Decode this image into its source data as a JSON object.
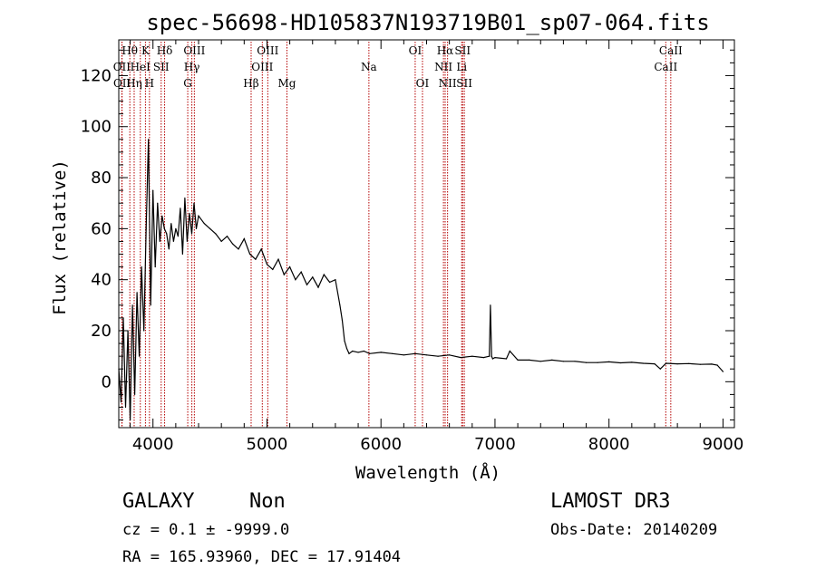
{
  "chart_data": {
    "type": "line",
    "title": "spec-56698-HD105837N193719B01_sp07-064.fits",
    "xlabel": "Wavelength (Å)",
    "ylabel": "Flux (relative)",
    "xlim": [
      3700,
      9100
    ],
    "ylim": [
      -18,
      134
    ],
    "xticks": [
      4000,
      5000,
      6000,
      7000,
      8000,
      9000
    ],
    "yticks": [
      0,
      20,
      40,
      60,
      80,
      100,
      120
    ],
    "grid": false,
    "series": [
      {
        "x": [
          3700,
          3720,
          3740,
          3760,
          3780,
          3800,
          3820,
          3840,
          3860,
          3880,
          3900,
          3920,
          3940,
          3960,
          3980,
          4000,
          4020,
          4040,
          4060,
          4080,
          4100,
          4120,
          4140,
          4160,
          4180,
          4200,
          4220,
          4240,
          4260,
          4280,
          4300,
          4320,
          4340,
          4360,
          4380,
          4400,
          4450,
          4500,
          4550,
          4600,
          4650,
          4700,
          4750,
          4800,
          4850,
          4900,
          4950,
          5000,
          5050,
          5100,
          5150,
          5200,
          5250,
          5300,
          5350,
          5400,
          5450,
          5500,
          5550,
          5600,
          5640,
          5660,
          5680,
          5700,
          5720,
          5750,
          5800,
          5850,
          5900,
          6000,
          6100,
          6200,
          6300,
          6400,
          6500,
          6600,
          6700,
          6800,
          6900,
          6950,
          6960,
          6970,
          6980,
          7000,
          7100,
          7130,
          7200,
          7300,
          7400,
          7500,
          7600,
          7700,
          7800,
          7900,
          8000,
          8100,
          8200,
          8300,
          8400,
          8450,
          8500,
          8600,
          8700,
          8800,
          8900,
          8950,
          9000
        ],
        "values": [
          5,
          -8,
          25,
          -10,
          20,
          -15,
          30,
          -5,
          35,
          10,
          45,
          20,
          60,
          95,
          30,
          75,
          45,
          70,
          55,
          65,
          60,
          58,
          52,
          62,
          55,
          60,
          57,
          68,
          50,
          72,
          55,
          66,
          58,
          70,
          60,
          65,
          62,
          60,
          58,
          55,
          57,
          54,
          52,
          56,
          50,
          48,
          52,
          46,
          44,
          48,
          42,
          45,
          40,
          43,
          38,
          41,
          37,
          42,
          39,
          40,
          30,
          24,
          16,
          13,
          11,
          12,
          11.5,
          12,
          11,
          11.5,
          11,
          10.5,
          11,
          10.5,
          10,
          10.5,
          9.5,
          10,
          9.5,
          10,
          30,
          10,
          9,
          9.5,
          9,
          12,
          8.5,
          8.5,
          8,
          8.5,
          8,
          8,
          7.5,
          7.5,
          7.8,
          7.4,
          7.6,
          7.2,
          7,
          5,
          7.2,
          7,
          7.1,
          6.8,
          6.9,
          6.5,
          4
        ]
      }
    ],
    "line_markers": [
      {
        "label": "Hθ",
        "x": 3797,
        "row": 0
      },
      {
        "label": "OII",
        "x": 3727,
        "row": 1
      },
      {
        "label": "HeI",
        "x": 3889,
        "row": 1
      },
      {
        "label": "OII",
        "x": 3729,
        "row": 2
      },
      {
        "label": "Hη",
        "x": 3835,
        "row": 2
      },
      {
        "label": "K",
        "x": 3934,
        "row": 0
      },
      {
        "label": "H",
        "x": 3969,
        "row": 2
      },
      {
        "label": "Hδ",
        "x": 4102,
        "row": 0
      },
      {
        "label": "SII",
        "x": 4072,
        "row": 1
      },
      {
        "label": "OIII",
        "x": 4363,
        "row": 0
      },
      {
        "label": "Hγ",
        "x": 4341,
        "row": 1
      },
      {
        "label": "G",
        "x": 4305,
        "row": 2
      },
      {
        "label": "OIII",
        "x": 5007,
        "row": 0
      },
      {
        "label": "OIII",
        "x": 4959,
        "row": 1
      },
      {
        "label": "Hβ",
        "x": 4861,
        "row": 2
      },
      {
        "label": "Mg",
        "x": 5175,
        "row": 2
      },
      {
        "label": "Na",
        "x": 5894,
        "row": 1
      },
      {
        "label": "OI",
        "x": 6300,
        "row": 0
      },
      {
        "label": "OI",
        "x": 6364,
        "row": 2
      },
      {
        "label": "Hα",
        "x": 6563,
        "row": 0
      },
      {
        "label": "SII",
        "x": 6716,
        "row": 0
      },
      {
        "label": "NII",
        "x": 6548,
        "row": 1
      },
      {
        "label": "Li",
        "x": 6708,
        "row": 1
      },
      {
        "label": "NII",
        "x": 6584,
        "row": 2
      },
      {
        "label": "SII",
        "x": 6731,
        "row": 2
      },
      {
        "label": "CaII",
        "x": 8542,
        "row": 0
      },
      {
        "label": "CaII",
        "x": 8498,
        "row": 1
      }
    ]
  },
  "footer": {
    "class_label": "GALAXY",
    "subclass_label": "Non",
    "cz_text": "cz = 0.1 ± -9999.0",
    "radec_text": "RA = 165.93960, DEC =  17.91404",
    "survey": "LAMOST DR3",
    "obs_date": "Obs-Date: 20140209"
  }
}
